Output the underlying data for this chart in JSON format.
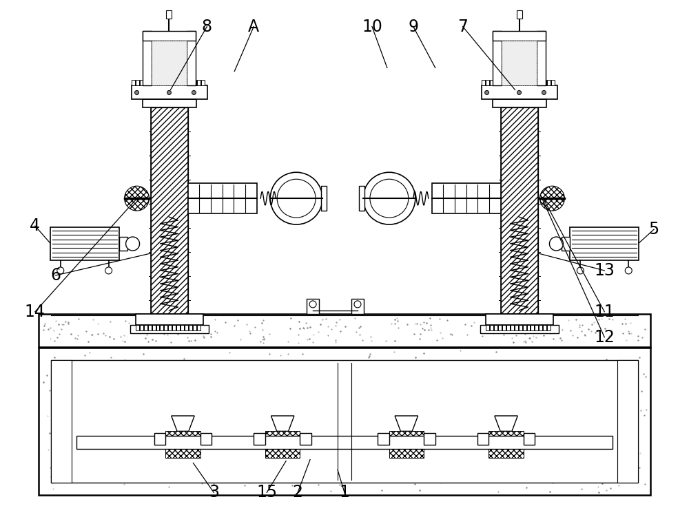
{
  "bg_color": "#ffffff",
  "figsize": [
    10.0,
    7.48
  ],
  "dpi": 100,
  "label_fontsize": 17
}
